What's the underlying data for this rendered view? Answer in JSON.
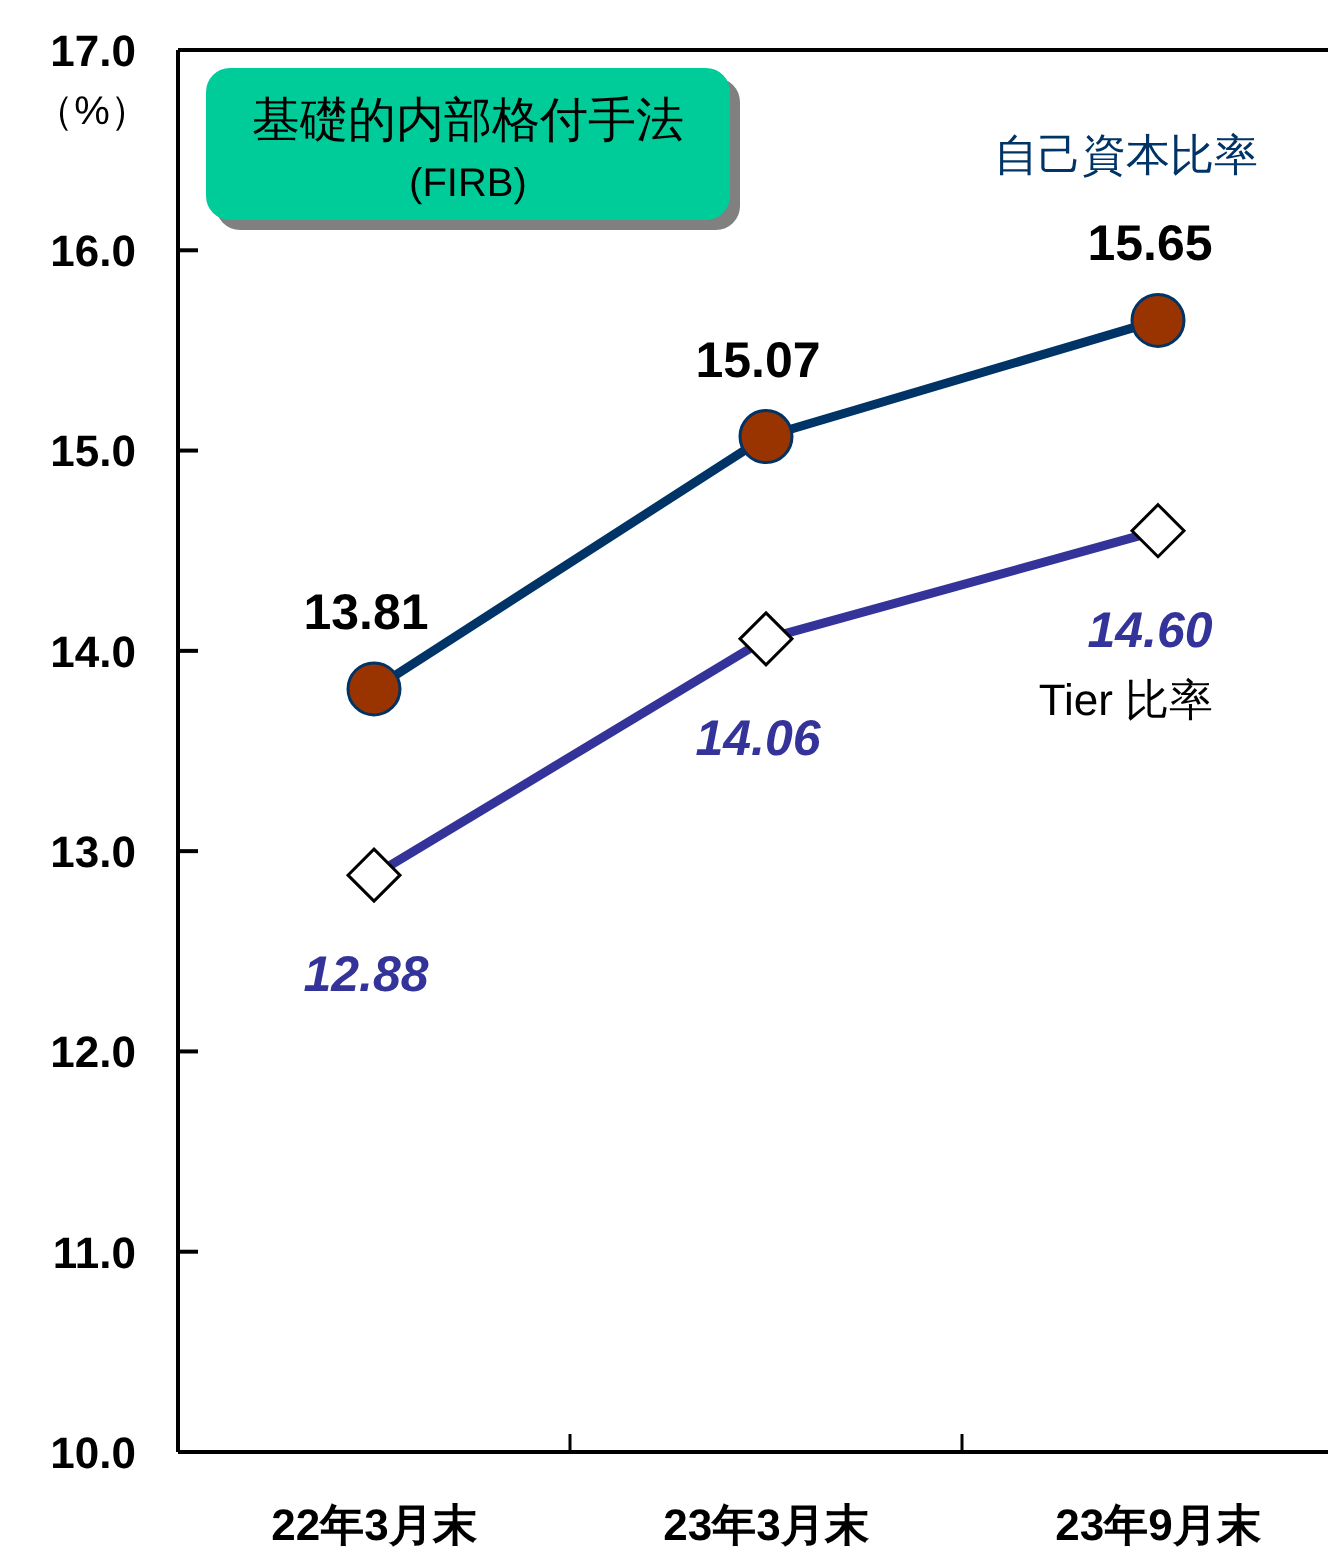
{
  "chart_data": {
    "type": "line",
    "ylabel": "（%）",
    "categories": [
      "22年3月末",
      "23年3月末",
      "23年9月末"
    ],
    "series": [
      {
        "name": "自己資本比率",
        "color": "#003366",
        "colors": [
          "#993300",
          "#993300",
          "#993300"
        ],
        "marker": "circle",
        "values": [
          13.81,
          15.07,
          15.65
        ],
        "value_labels": [
          "13.81",
          "15.07",
          "15.65"
        ]
      },
      {
        "name": "Tier 比率",
        "color": "#333399",
        "colors": [
          "#ffffff",
          "#ffffff",
          "#ffffff"
        ],
        "marker": "diamond",
        "values": [
          12.88,
          14.06,
          14.6
        ],
        "value_labels": [
          "12.88",
          "14.06",
          "14.60"
        ]
      }
    ],
    "ylim": [
      10,
      17
    ],
    "yticks": [
      {
        "value": 10,
        "label": "10.0"
      },
      {
        "value": 11,
        "label": "11.0"
      },
      {
        "value": 12,
        "label": "12.0"
      },
      {
        "value": 13,
        "label": "13.0"
      },
      {
        "value": 14,
        "label": "14.0"
      },
      {
        "value": 15,
        "label": "15.0"
      },
      {
        "value": 16,
        "label": "16.0"
      },
      {
        "value": 17,
        "label": "17.0"
      }
    ],
    "grid": false,
    "annotations": [
      "基礎的内部格付手法\n(FIRB)"
    ]
  }
}
